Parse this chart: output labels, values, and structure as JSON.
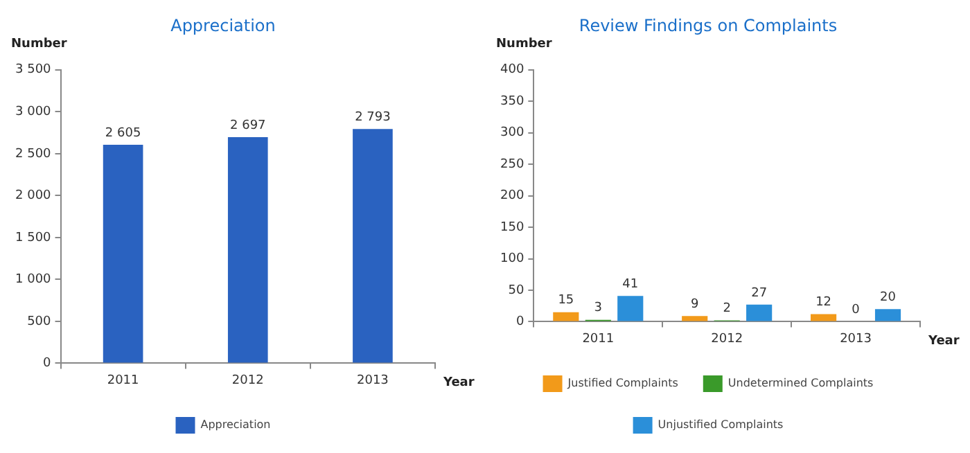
{
  "chart_data": [
    {
      "type": "bar",
      "title": "Appreciation",
      "ylabel": "Number",
      "xlabel": "Year",
      "categories": [
        "2011",
        "2012",
        "2013"
      ],
      "series": [
        {
          "name": "Appreciation",
          "color": "#2a62c0",
          "values": [
            2605,
            2697,
            2793
          ],
          "value_labels": [
            "2 605",
            "2 697",
            "2 793"
          ]
        }
      ],
      "ylim": [
        0,
        3500
      ],
      "yticks": [
        0,
        500,
        {
          "value": 1000,
          "label": "1 000"
        },
        {
          "value": 1500,
          "label": "1 500"
        },
        {
          "value": 2000,
          "label": "2 000"
        },
        {
          "value": 2500,
          "label": "2 500"
        },
        {
          "value": 3000,
          "label": "3 000"
        },
        {
          "value": 3500,
          "label": "3 500"
        }
      ],
      "grid": false,
      "legend": "bottom"
    },
    {
      "type": "bar",
      "title": "Review Findings on Complaints",
      "ylabel": "Number",
      "xlabel": "Year",
      "categories": [
        "2011",
        "2012",
        "2013"
      ],
      "series": [
        {
          "name": "Justified Complaints",
          "color": "#f29a1a",
          "values": [
            15,
            9,
            12
          ],
          "value_labels": [
            "15",
            "9",
            "12"
          ]
        },
        {
          "name": "Undetermined Complaints",
          "color": "#3a9a2a",
          "values": [
            3,
            2,
            0
          ],
          "value_labels": [
            "3",
            "2",
            "0"
          ]
        },
        {
          "name": "Unjustified Complaints",
          "color": "#2b8fd9",
          "values": [
            41,
            27,
            20
          ],
          "value_labels": [
            "41",
            "27",
            "20"
          ]
        }
      ],
      "ylim": [
        0,
        400
      ],
      "yticks": [
        0,
        50,
        100,
        150,
        200,
        250,
        300,
        350,
        400
      ],
      "grid": false,
      "legend": "bottom"
    }
  ]
}
